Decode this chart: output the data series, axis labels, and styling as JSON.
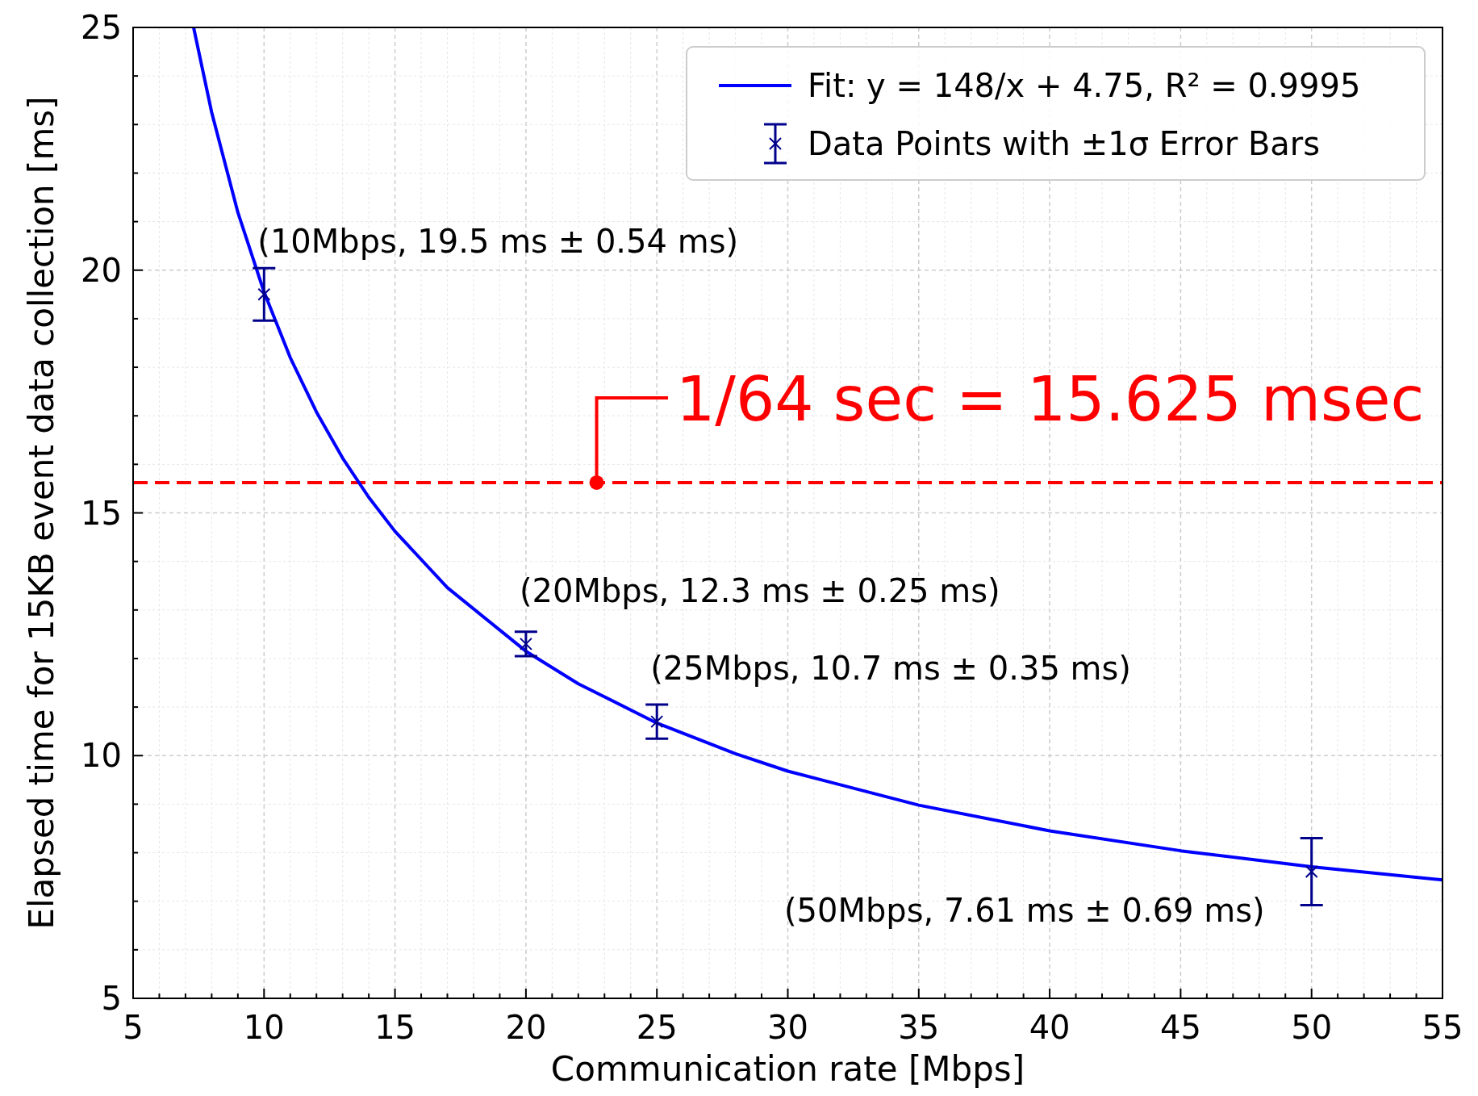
{
  "chart_data": {
    "type": "scatter",
    "xlabel": "Communication rate [Mbps]",
    "ylabel": "Elapsed time for 15KB event data collection [ms]",
    "xlim": [
      5,
      55
    ],
    "ylim": [
      5,
      25
    ],
    "xticks": [
      5,
      {
        "value": 6,
        "label": null
      },
      {
        "value": 7,
        "label": null
      },
      {
        "value": 8,
        "label": null
      },
      {
        "value": 9,
        "label": null
      },
      10,
      {
        "value": 11,
        "label": null
      },
      {
        "value": 12,
        "label": null
      },
      {
        "value": 13,
        "label": null
      },
      {
        "value": 14,
        "label": null
      },
      15,
      {
        "value": 16,
        "label": null
      },
      {
        "value": 17,
        "label": null
      },
      {
        "value": 18,
        "label": null
      },
      {
        "value": 19,
        "label": null
      },
      20,
      {
        "value": 21,
        "label": null
      },
      {
        "value": 22,
        "label": null
      },
      {
        "value": 23,
        "label": null
      },
      {
        "value": 24,
        "label": null
      },
      25,
      {
        "value": 26,
        "label": null
      },
      {
        "value": 27,
        "label": null
      },
      {
        "value": 28,
        "label": null
      },
      {
        "value": 29,
        "label": null
      },
      30,
      {
        "value": 31,
        "label": null
      },
      {
        "value": 32,
        "label": null
      },
      {
        "value": 33,
        "label": null
      },
      {
        "value": 34,
        "label": null
      },
      35,
      {
        "value": 36,
        "label": null
      },
      {
        "value": 37,
        "label": null
      },
      {
        "value": 38,
        "label": null
      },
      {
        "value": 39,
        "label": null
      },
      40,
      {
        "value": 41,
        "label": null
      },
      {
        "value": 42,
        "label": null
      },
      {
        "value": 43,
        "label": null
      },
      {
        "value": 44,
        "label": null
      },
      45,
      {
        "value": 46,
        "label": null
      },
      {
        "value": 47,
        "label": null
      },
      {
        "value": 48,
        "label": null
      },
      {
        "value": 49,
        "label": null
      },
      50,
      {
        "value": 51,
        "label": null
      },
      {
        "value": 52,
        "label": null
      },
      {
        "value": 53,
        "label": null
      },
      {
        "value": 54,
        "label": null
      },
      55
    ],
    "yticks": [
      5,
      {
        "value": 6,
        "label": null
      },
      {
        "value": 7,
        "label": null
      },
      {
        "value": 8,
        "label": null
      },
      {
        "value": 9,
        "label": null
      },
      10,
      {
        "value": 11,
        "label": null
      },
      {
        "value": 12,
        "label": null
      },
      {
        "value": 13,
        "label": null
      },
      {
        "value": 14,
        "label": null
      },
      15,
      {
        "value": 16,
        "label": null
      },
      {
        "value": 17,
        "label": null
      },
      {
        "value": 18,
        "label": null
      },
      {
        "value": 19,
        "label": null
      },
      20,
      {
        "value": 21,
        "label": null
      },
      {
        "value": 22,
        "label": null
      },
      {
        "value": 23,
        "label": null
      },
      {
        "value": 24,
        "label": null
      },
      25
    ],
    "grid": true,
    "legend": "top right",
    "series": [
      {
        "name": "Fit: y = 148/x + 4.75, R² = 0.9995",
        "type": "line",
        "color": "#0000ff",
        "marker": "none",
        "line_style": "solid",
        "x": [
          7.31,
          8,
          9,
          10,
          11,
          12,
          13,
          14,
          15,
          17,
          20,
          22,
          25,
          28,
          30,
          35,
          40,
          45,
          50,
          55
        ],
        "values": [
          25.0,
          23.25,
          21.19,
          19.55,
          18.2,
          17.08,
          16.13,
          15.32,
          14.62,
          13.46,
          12.15,
          11.48,
          10.67,
          10.04,
          9.68,
          8.98,
          8.45,
          8.04,
          7.71,
          7.44
        ]
      },
      {
        "name": "Data Points with ±1σ Error Bars",
        "color": "#00008b",
        "marker": "cross",
        "x": [
          10,
          20,
          25,
          50
        ],
        "values": [
          19.5,
          12.3,
          10.7,
          7.61
        ],
        "errors": [
          0.54,
          0.25,
          0.35,
          0.69
        ]
      }
    ],
    "ref_lines": [
      {
        "axis": "y",
        "value": 15.625,
        "label": "1/64 sec = 15.625 msec",
        "color": "#ff0000",
        "line_style": "dashed"
      }
    ],
    "annotations": [
      {
        "text": "(10Mbps, 19.5 ms ± 0.54 ms)",
        "x": 10,
        "y": 19.5
      },
      {
        "text": "(20Mbps, 12.3 ms ± 0.25 ms)",
        "x": 20,
        "y": 12.3
      },
      {
        "text": "(25Mbps, 10.7 ms ± 0.35 ms)",
        "x": 25,
        "y": 10.7
      },
      {
        "text": "(50Mbps, 7.61 ms ± 0.69 ms)",
        "x": 50,
        "y": 7.61
      }
    ]
  }
}
